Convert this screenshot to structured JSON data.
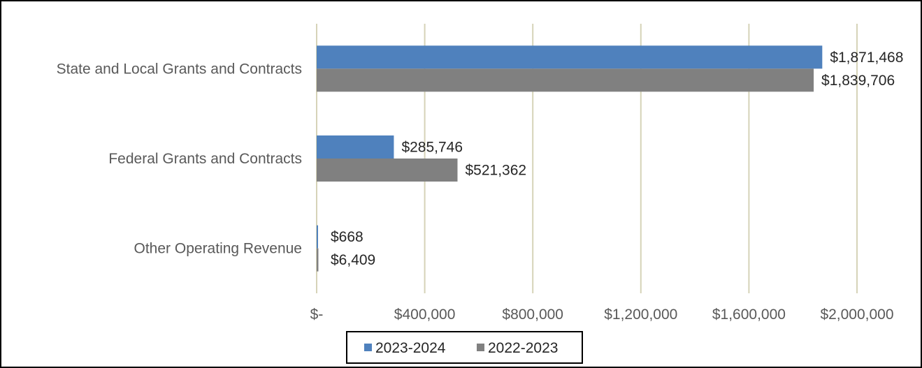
{
  "chart_data": {
    "type": "bar",
    "orientation": "horizontal",
    "categories": [
      "State and Local Grants and Contracts",
      "Federal Grants and Contracts",
      "Other Operating Revenue"
    ],
    "series": [
      {
        "name": "2023-2024",
        "color": "#4f81bd",
        "values": [
          1871468,
          285746,
          668
        ],
        "labels": [
          "$1,871,468",
          "$285,746",
          "$668"
        ]
      },
      {
        "name": "2022-2023",
        "color": "#808080",
        "values": [
          1839706,
          521362,
          6409
        ],
        "labels": [
          "$1,839,706",
          "$521,362",
          "$6,409"
        ]
      }
    ],
    "xlim": [
      0,
      2000000
    ],
    "xticks": [
      0,
      400000,
      800000,
      1200000,
      1600000,
      2000000
    ],
    "xtick_labels": [
      "$-",
      "$400,000",
      "$800,000",
      "$1,200,000",
      "$1,600,000",
      "$2,000,000"
    ],
    "grid": true,
    "grid_color": "#d6d3b8",
    "legend": "bottom",
    "title": "",
    "xlabel": "",
    "ylabel": ""
  }
}
